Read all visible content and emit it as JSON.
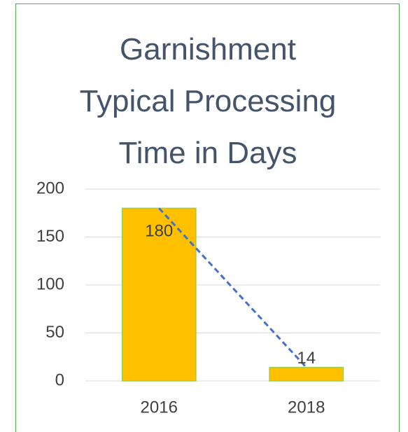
{
  "chart_data": {
    "type": "bar",
    "title": "Garnishment Typical Processing Time in Days",
    "categories": [
      "2016",
      "2018"
    ],
    "values": [
      180,
      14
    ],
    "color": "#ffc000",
    "edge_color": "#92d050",
    "ylim": [
      0,
      200
    ],
    "yticks": [
      0,
      50,
      100,
      150,
      200
    ],
    "grid": true,
    "trendline": true,
    "trendline_color": "#4472c4",
    "data_labels": true
  }
}
